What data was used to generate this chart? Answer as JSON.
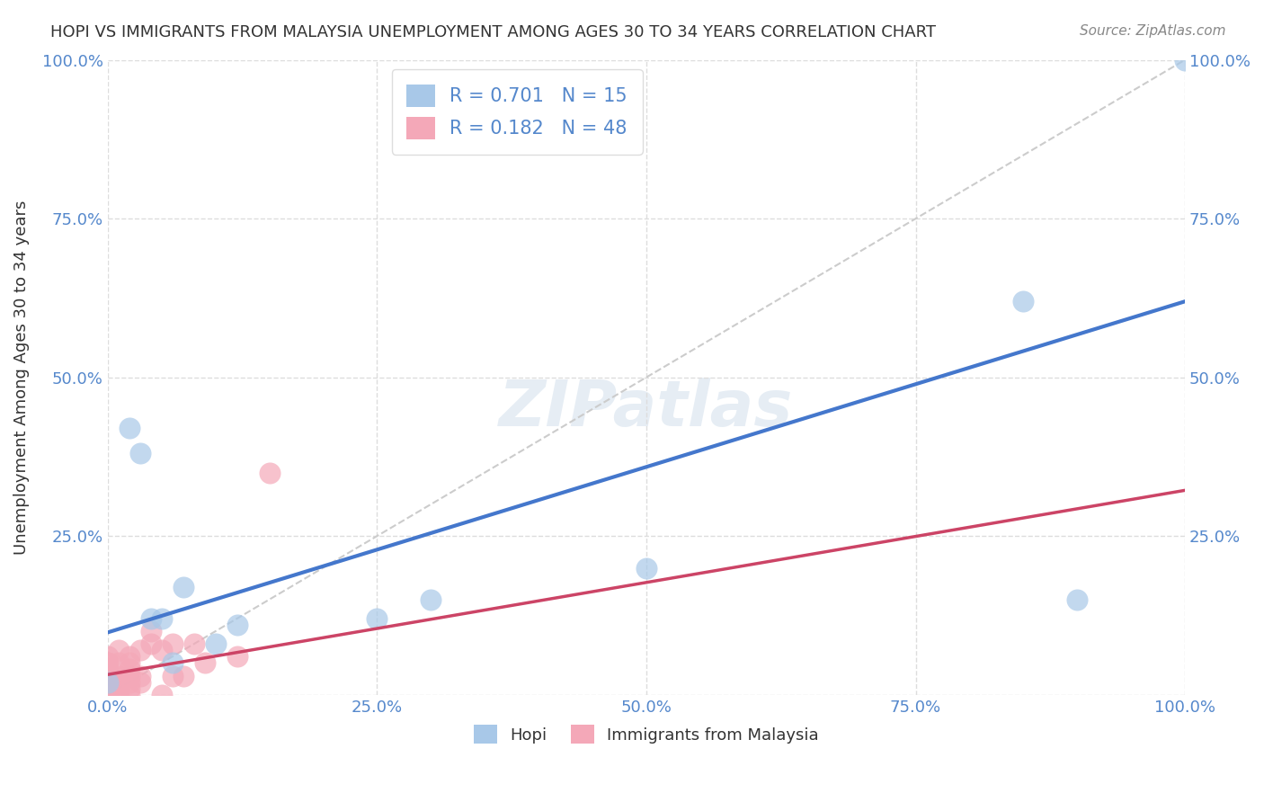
{
  "title": "HOPI VS IMMIGRANTS FROM MALAYSIA UNEMPLOYMENT AMONG AGES 30 TO 34 YEARS CORRELATION CHART",
  "source": "Source: ZipAtlas.com",
  "ylabel": "Unemployment Among Ages 30 to 34 years",
  "xlabel": "",
  "xlim": [
    0,
    1.0
  ],
  "ylim": [
    0,
    1.0
  ],
  "xticks": [
    0.0,
    0.25,
    0.5,
    0.75,
    1.0
  ],
  "yticks": [
    0.0,
    0.25,
    0.5,
    0.75,
    1.0
  ],
  "xticklabels": [
    "0.0%",
    "25.0%",
    "50.0%",
    "75.0%",
    "100.0%"
  ],
  "yticklabels": [
    "",
    "25.0%",
    "50.0%",
    "75.0%",
    "100.0%"
  ],
  "hopi_color": "#a8c8e8",
  "malaysia_color": "#f4a8b8",
  "hopi_R": 0.701,
  "hopi_N": 15,
  "malaysia_R": 0.182,
  "malaysia_N": 48,
  "hopi_line_color": "#4477cc",
  "malaysia_line_color": "#cc4466",
  "diagonal_color": "#cccccc",
  "watermark": "ZIPatlas",
  "hopi_scatter_x": [
    0.0,
    0.03,
    0.04,
    0.05,
    0.07,
    0.1,
    0.12,
    0.25,
    0.5,
    0.85,
    0.9,
    1.0,
    0.02,
    0.06,
    0.3
  ],
  "hopi_scatter_y": [
    0.02,
    0.38,
    0.12,
    0.12,
    0.17,
    0.08,
    0.11,
    0.12,
    0.2,
    0.62,
    0.15,
    1.0,
    0.42,
    0.05,
    0.15
  ],
  "malaysia_scatter_x": [
    0.0,
    0.0,
    0.0,
    0.0,
    0.0,
    0.0,
    0.0,
    0.0,
    0.0,
    0.0,
    0.0,
    0.0,
    0.0,
    0.0,
    0.0,
    0.0,
    0.0,
    0.0,
    0.0,
    0.0,
    0.01,
    0.01,
    0.01,
    0.01,
    0.01,
    0.01,
    0.01,
    0.02,
    0.02,
    0.02,
    0.02,
    0.02,
    0.02,
    0.02,
    0.03,
    0.03,
    0.03,
    0.04,
    0.04,
    0.05,
    0.05,
    0.06,
    0.06,
    0.07,
    0.08,
    0.09,
    0.12,
    0.15
  ],
  "malaysia_scatter_y": [
    0.0,
    0.0,
    0.0,
    0.0,
    0.0,
    0.0,
    0.0,
    0.01,
    0.01,
    0.01,
    0.02,
    0.02,
    0.02,
    0.03,
    0.03,
    0.04,
    0.04,
    0.05,
    0.05,
    0.06,
    0.0,
    0.01,
    0.02,
    0.02,
    0.03,
    0.05,
    0.07,
    0.0,
    0.01,
    0.02,
    0.03,
    0.04,
    0.05,
    0.06,
    0.02,
    0.03,
    0.07,
    0.08,
    0.1,
    0.0,
    0.07,
    0.03,
    0.08,
    0.03,
    0.08,
    0.05,
    0.06,
    0.35
  ],
  "legend_label1": "R = 0.701   N = 15",
  "legend_label2": "R = 0.182   N = 48",
  "bottom_label1": "Hopi",
  "bottom_label2": "Immigrants from Malaysia",
  "background_color": "#ffffff",
  "grid_color": "#dddddd",
  "title_color": "#333333",
  "tick_color": "#5588cc",
  "axis_label_color": "#333333"
}
